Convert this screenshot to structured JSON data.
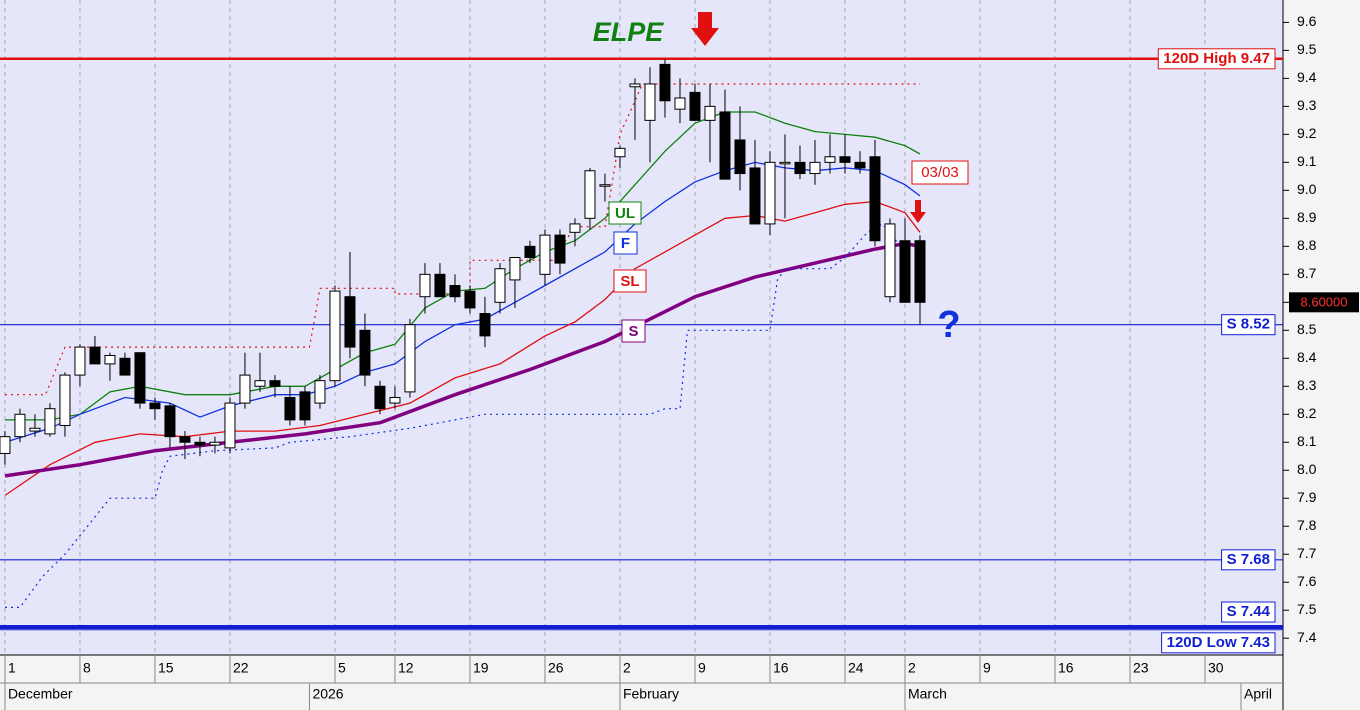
{
  "chart_data": {
    "type": "candlestick",
    "title": "ELPE",
    "xlim": [
      -0.33,
      85.2
    ],
    "ylim": [
      7.34,
      9.68
    ],
    "grid": true,
    "yticks": [
      7.4,
      7.5,
      7.6,
      7.7,
      7.8,
      7.9,
      {
        "value": 8,
        "label": "8.0"
      },
      8.1,
      8.2,
      8.3,
      8.4,
      8.5,
      8.6,
      8.7,
      8.8,
      8.9,
      {
        "value": 9,
        "label": "9.0"
      },
      9.1,
      9.2,
      9.3,
      9.4,
      9.5,
      9.6
    ],
    "xticks": [
      {
        "value": 0,
        "label": "1"
      },
      {
        "value": 5,
        "label": "8"
      },
      {
        "value": 10,
        "label": "15"
      },
      {
        "value": 15,
        "label": "22"
      },
      {
        "value": 22,
        "label": "5"
      },
      {
        "value": 26,
        "label": "12"
      },
      {
        "value": 31,
        "label": "19"
      },
      {
        "value": 36,
        "label": "26"
      },
      {
        "value": 41,
        "label": "2"
      },
      {
        "value": 46,
        "label": "9"
      },
      {
        "value": 51,
        "label": "16"
      },
      {
        "value": 56,
        "label": "24"
      },
      {
        "value": 60,
        "label": "2"
      },
      {
        "value": 65,
        "label": "9"
      },
      {
        "value": 70,
        "label": "16"
      },
      {
        "value": 75,
        "label": "23"
      },
      {
        "value": 80,
        "label": "30"
      }
    ],
    "month_ticks": [
      {
        "value": 0,
        "label": "December"
      },
      {
        "value": 20.3,
        "label": "2026"
      },
      {
        "value": 41,
        "label": "February"
      },
      {
        "value": 60,
        "label": "March"
      },
      {
        "value": 82.4,
        "label": "April"
      }
    ],
    "candles": {
      "x": [
        0,
        1,
        2,
        3,
        4,
        5,
        6,
        7,
        8,
        9,
        10,
        11,
        12,
        13,
        14,
        15,
        16,
        17,
        18,
        19,
        20,
        21,
        22,
        23,
        24,
        25,
        26,
        27,
        28,
        29,
        30,
        31,
        32,
        33,
        34,
        35,
        36,
        37,
        38,
        39,
        40,
        41,
        42,
        43,
        44,
        45,
        46,
        47,
        48,
        49,
        50,
        51,
        52,
        53,
        54,
        55,
        56,
        57,
        58,
        59,
        60,
        61
      ],
      "open": [
        8.06,
        8.12,
        8.14,
        8.13,
        8.16,
        8.34,
        8.44,
        8.38,
        8.4,
        8.42,
        8.24,
        8.23,
        8.12,
        8.1,
        8.09,
        8.08,
        8.24,
        8.3,
        8.32,
        8.26,
        8.28,
        8.24,
        8.32,
        8.62,
        8.5,
        8.3,
        8.24,
        8.28,
        8.62,
        8.7,
        8.66,
        8.64,
        8.56,
        8.6,
        8.68,
        8.8,
        8.7,
        8.84,
        8.85,
        8.9,
        9.02,
        9.12,
        9.37,
        9.25,
        9.45,
        9.29,
        9.35,
        9.25,
        9.28,
        9.18,
        9.08,
        8.88,
        9.1,
        9.1,
        9.06,
        9.1,
        9.12,
        9.1,
        9.12,
        8.62,
        8.82,
        8.82
      ],
      "high": [
        8.14,
        8.22,
        8.2,
        8.24,
        8.35,
        8.45,
        8.48,
        8.42,
        8.42,
        8.42,
        8.26,
        8.24,
        8.14,
        8.12,
        8.12,
        8.26,
        8.42,
        8.42,
        8.34,
        8.3,
        8.3,
        8.34,
        8.66,
        8.78,
        8.56,
        8.32,
        8.3,
        8.54,
        8.74,
        8.74,
        8.7,
        8.66,
        8.62,
        8.74,
        8.76,
        8.82,
        8.86,
        8.86,
        8.9,
        9.08,
        9.06,
        9.16,
        9.4,
        9.44,
        9.47,
        9.4,
        9.38,
        9.38,
        9.36,
        9.3,
        9.18,
        9.14,
        9.2,
        9.16,
        9.18,
        9.2,
        9.2,
        9.14,
        9.18,
        8.9,
        8.9,
        8.84
      ],
      "low": [
        8.02,
        8.1,
        8.12,
        8.12,
        8.12,
        8.3,
        8.38,
        8.32,
        8.34,
        8.22,
        8.18,
        8.08,
        8.04,
        8.05,
        8.06,
        8.06,
        8.22,
        8.28,
        8.26,
        8.16,
        8.16,
        8.22,
        8.3,
        8.4,
        8.3,
        8.2,
        8.22,
        8.26,
        8.56,
        8.62,
        8.6,
        8.56,
        8.44,
        8.56,
        8.58,
        8.74,
        8.66,
        8.7,
        8.8,
        8.86,
        8.96,
        9.08,
        9.18,
        9.1,
        9.26,
        9.24,
        9.26,
        9.1,
        9.2,
        9.0,
        8.88,
        8.84,
        8.9,
        9.04,
        9.02,
        9.06,
        9.06,
        9.06,
        8.8,
        8.6,
        8.6,
        8.52
      ],
      "close": [
        8.12,
        8.2,
        8.15,
        8.22,
        8.34,
        8.44,
        8.38,
        8.41,
        8.34,
        8.24,
        8.22,
        8.12,
        8.1,
        8.09,
        8.1,
        8.24,
        8.34,
        8.32,
        8.3,
        8.18,
        8.18,
        8.32,
        8.64,
        8.44,
        8.34,
        8.22,
        8.26,
        8.52,
        8.7,
        8.62,
        8.62,
        8.58,
        8.48,
        8.72,
        8.76,
        8.76,
        8.84,
        8.74,
        8.88,
        9.07,
        9.02,
        9.15,
        9.38,
        9.38,
        9.32,
        9.33,
        9.25,
        9.3,
        9.04,
        9.06,
        8.88,
        9.1,
        9.1,
        9.06,
        9.1,
        9.12,
        9.1,
        9.08,
        8.82,
        8.88,
        8.6,
        8.6
      ]
    },
    "lines": [
      {
        "name": "UL",
        "color": "#108010",
        "width": 1.3,
        "dash": "solid",
        "x": [
          0,
          3,
          5,
          7,
          9,
          12,
          15,
          18,
          20,
          22,
          24,
          26,
          28,
          30,
          32,
          34,
          36,
          38,
          40,
          42,
          44,
          46,
          48,
          50,
          52,
          54,
          56,
          58,
          60,
          61
        ],
        "values": [
          8.18,
          8.18,
          8.2,
          8.28,
          8.3,
          8.27,
          8.27,
          8.3,
          8.3,
          8.36,
          8.42,
          8.45,
          8.58,
          8.64,
          8.65,
          8.72,
          8.78,
          8.82,
          8.9,
          9.02,
          9.14,
          9.24,
          9.28,
          9.28,
          9.24,
          9.21,
          9.2,
          9.19,
          9.16,
          9.13
        ]
      },
      {
        "name": "F",
        "color": "#1030e0",
        "width": 1.3,
        "dash": "solid",
        "x": [
          0,
          3,
          5,
          8,
          11,
          13,
          15,
          18,
          20,
          22,
          24,
          26,
          28,
          30,
          32,
          34,
          36,
          38,
          40,
          42,
          44,
          46,
          48,
          50,
          52,
          54,
          56,
          58,
          60,
          61
        ],
        "values": [
          8.1,
          8.15,
          8.2,
          8.26,
          8.24,
          8.19,
          8.23,
          8.27,
          8.27,
          8.3,
          8.35,
          8.38,
          8.46,
          8.52,
          8.54,
          8.6,
          8.66,
          8.72,
          8.78,
          8.88,
          8.96,
          9.03,
          9.07,
          9.1,
          9.08,
          9.07,
          9.08,
          9.07,
          9.02,
          8.98
        ]
      },
      {
        "name": "SL",
        "color": "#e01010",
        "width": 1.3,
        "dash": "solid",
        "x": [
          0,
          3,
          6,
          9,
          12,
          15,
          18,
          21,
          24,
          27,
          30,
          33,
          36,
          38,
          40,
          42,
          44,
          46,
          48,
          50,
          52,
          54,
          56,
          58,
          60,
          61
        ],
        "values": [
          7.91,
          8.02,
          8.1,
          8.13,
          8.12,
          8.14,
          8.14,
          8.16,
          8.2,
          8.24,
          8.33,
          8.38,
          8.48,
          8.53,
          8.61,
          8.72,
          8.78,
          8.84,
          8.9,
          8.91,
          8.89,
          8.92,
          8.95,
          8.96,
          8.92,
          8.85
        ]
      },
      {
        "name": "S",
        "color": "#800080",
        "width": 3.5,
        "dash": "solid",
        "x": [
          0,
          5,
          10,
          15,
          20,
          25,
          30,
          35,
          40,
          43,
          46,
          50,
          54,
          58,
          60,
          61
        ],
        "values": [
          7.98,
          8.02,
          8.07,
          8.1,
          8.13,
          8.17,
          8.27,
          8.36,
          8.46,
          8.54,
          8.62,
          8.69,
          8.74,
          8.79,
          8.81,
          8.8
        ]
      },
      {
        "color": "#e01010",
        "width": 1.2,
        "dash": "dotted",
        "x": [
          0,
          2.7,
          4,
          20.3,
          21,
          26,
          26,
          31,
          31,
          36.5,
          38,
          40,
          41,
          42.5,
          61
        ],
        "values": [
          8.27,
          8.27,
          8.44,
          8.44,
          8.65,
          8.65,
          8.63,
          8.63,
          8.75,
          8.75,
          8.87,
          8.87,
          9.2,
          9.38,
          9.38
        ]
      },
      {
        "color": "#1030e0",
        "width": 1.2,
        "dash": "dotted",
        "x": [
          0,
          1,
          2.5,
          4,
          7,
          10,
          10.5,
          11,
          14,
          18,
          19,
          23,
          27,
          32,
          33,
          43,
          44,
          45,
          45.5,
          51,
          51.5,
          52,
          55,
          56,
          57.5,
          58.5,
          60
        ],
        "values": [
          7.51,
          7.51,
          7.62,
          7.7,
          7.9,
          7.9,
          8.0,
          8.05,
          8.07,
          8.08,
          8.1,
          8.12,
          8.15,
          8.2,
          8.2,
          8.2,
          8.22,
          8.22,
          8.5,
          8.5,
          8.68,
          8.72,
          8.72,
          8.76,
          8.85,
          8.88,
          8.78
        ]
      }
    ],
    "hlines": [
      {
        "value": 9.47,
        "label": "120D High 9.47",
        "color": "#e01010",
        "width": 2.5
      },
      {
        "value": 8.52,
        "label": "S 8.52",
        "color": "#1020d0",
        "width": 1.2
      },
      {
        "value": 7.68,
        "label": "S 7.68",
        "color": "#1020d0",
        "width": 1.2
      },
      {
        "value": 7.44,
        "label": "S 7.44",
        "color": "#1020d0",
        "width": 4
      },
      {
        "value": 7.43,
        "label": "120D Low 7.43",
        "color": "#1020d0",
        "width": 1
      }
    ],
    "last_price": {
      "value": 8.6,
      "label": "8.60000"
    },
    "date_note": "03/03",
    "question": "?"
  }
}
